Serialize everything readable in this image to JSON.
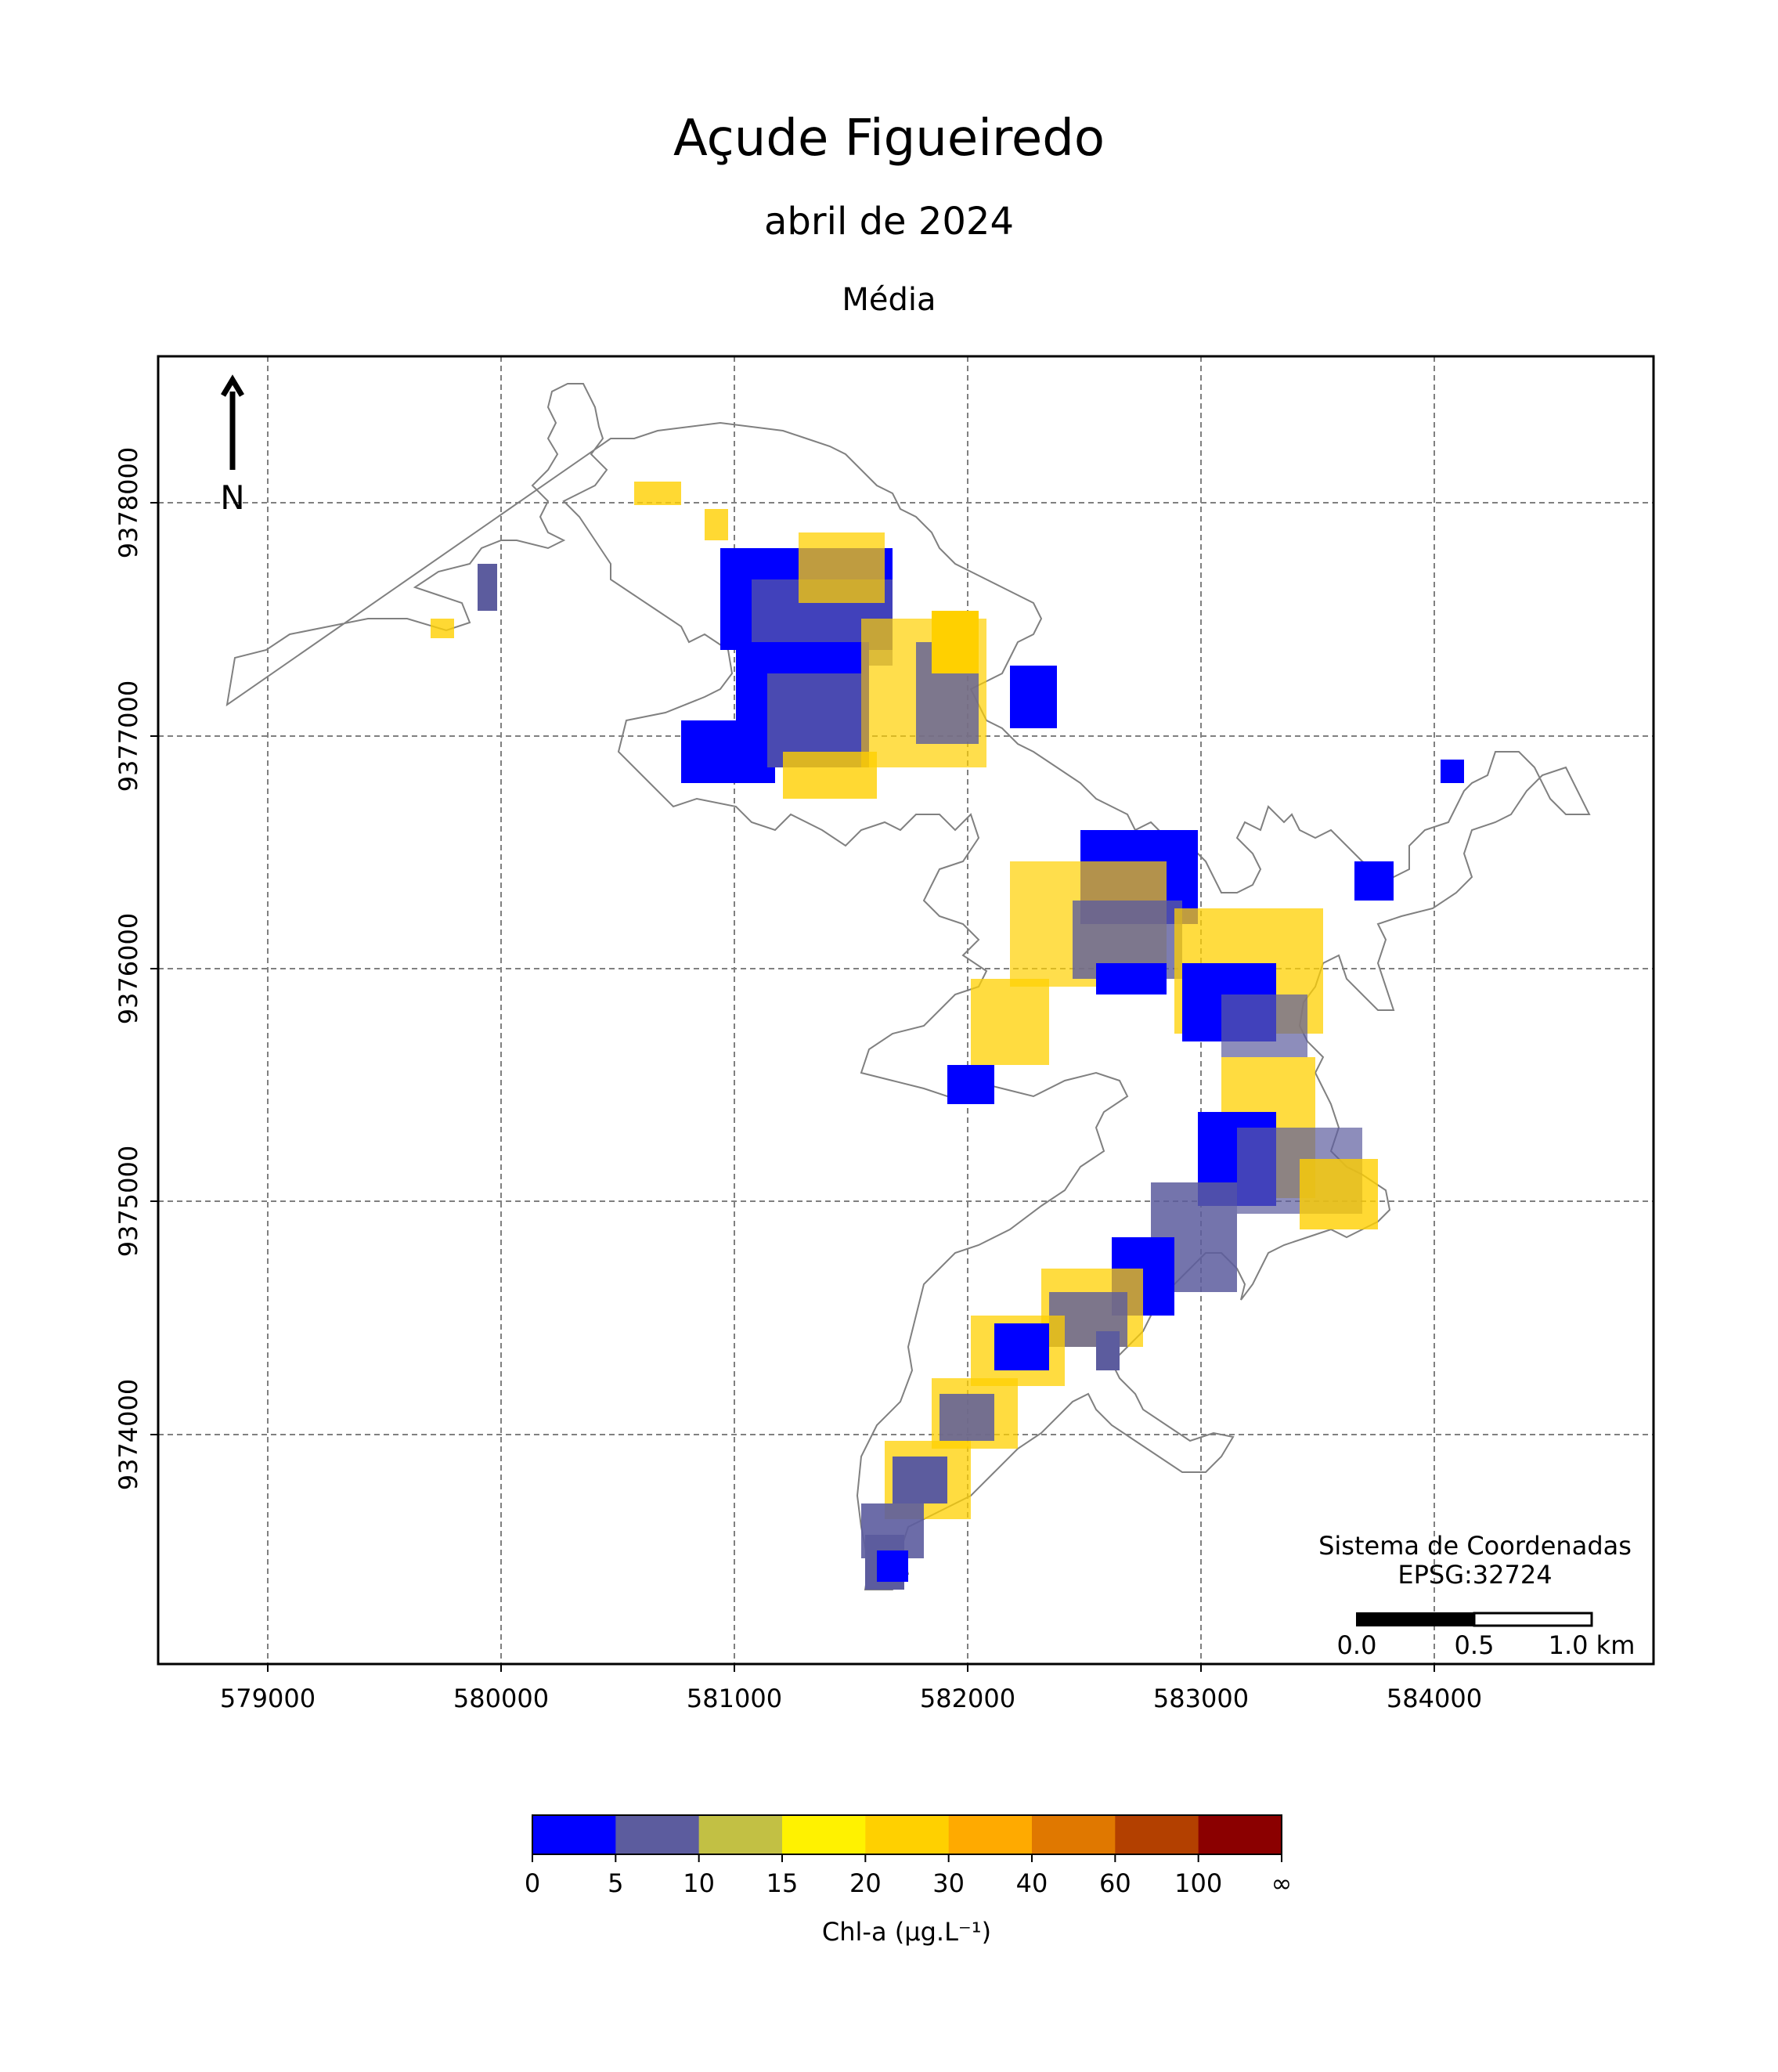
{
  "header": {
    "title": "Açude Figueiredo",
    "subtitle": "abril de 2024",
    "statistic": "Média"
  },
  "map": {
    "north_label": "N",
    "crs_line1": "Sistema de Coordenadas",
    "crs_line2": "EPSG:32724",
    "scale_labels": [
      "0.0",
      "0.5",
      "1.0 km"
    ],
    "x_ticks": [
      "579000",
      "580000",
      "581000",
      "582000",
      "583000",
      "584000"
    ],
    "y_ticks": [
      "9378000",
      "9377000",
      "9376000",
      "9375000",
      "9374000"
    ],
    "grid": true
  },
  "legend": {
    "label": "Chl-a (μg.L⁻¹)",
    "breaks": [
      "0",
      "5",
      "10",
      "15",
      "20",
      "30",
      "40",
      "60",
      "100",
      "∞"
    ],
    "colors": [
      "#0000ff",
      "#5c5c9e",
      "#c2c044",
      "#fff200",
      "#ffd000",
      "#ffaa00",
      "#e07800",
      "#b34000",
      "#8b0000"
    ]
  }
}
